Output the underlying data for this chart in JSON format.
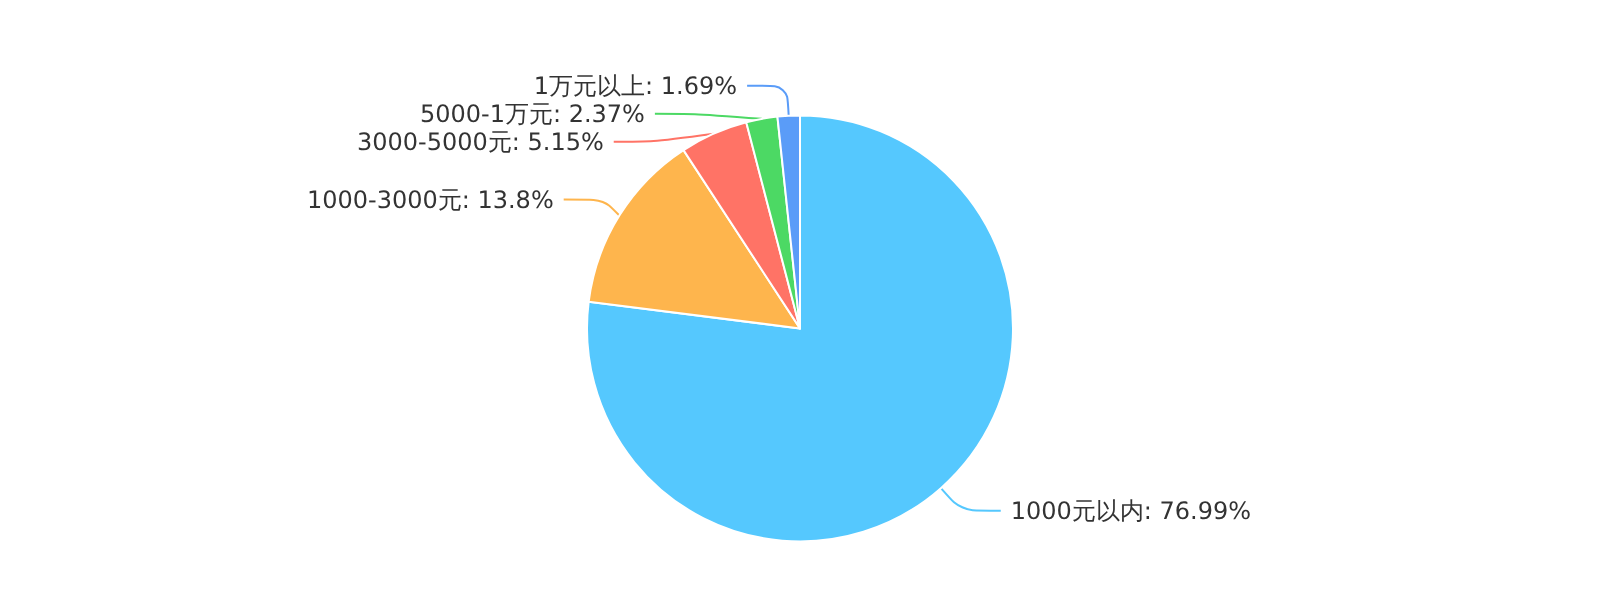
{
  "chart_data": {
    "type": "pie",
    "categories": [
      "1000元以内",
      "1000-3000元",
      "3000-5000元",
      "5000-1万元",
      "1万元以上"
    ],
    "values": [
      76.99,
      13.8,
      5.15,
      2.37,
      1.69
    ],
    "value_labels": [
      "76.99%",
      "13.8%",
      "5.15%",
      "2.37%",
      "1.69%"
    ],
    "colors": [
      "#55c8fe",
      "#feb54d",
      "#ff7366",
      "#4cd964",
      "#5a9cf8"
    ],
    "legend": false
  }
}
